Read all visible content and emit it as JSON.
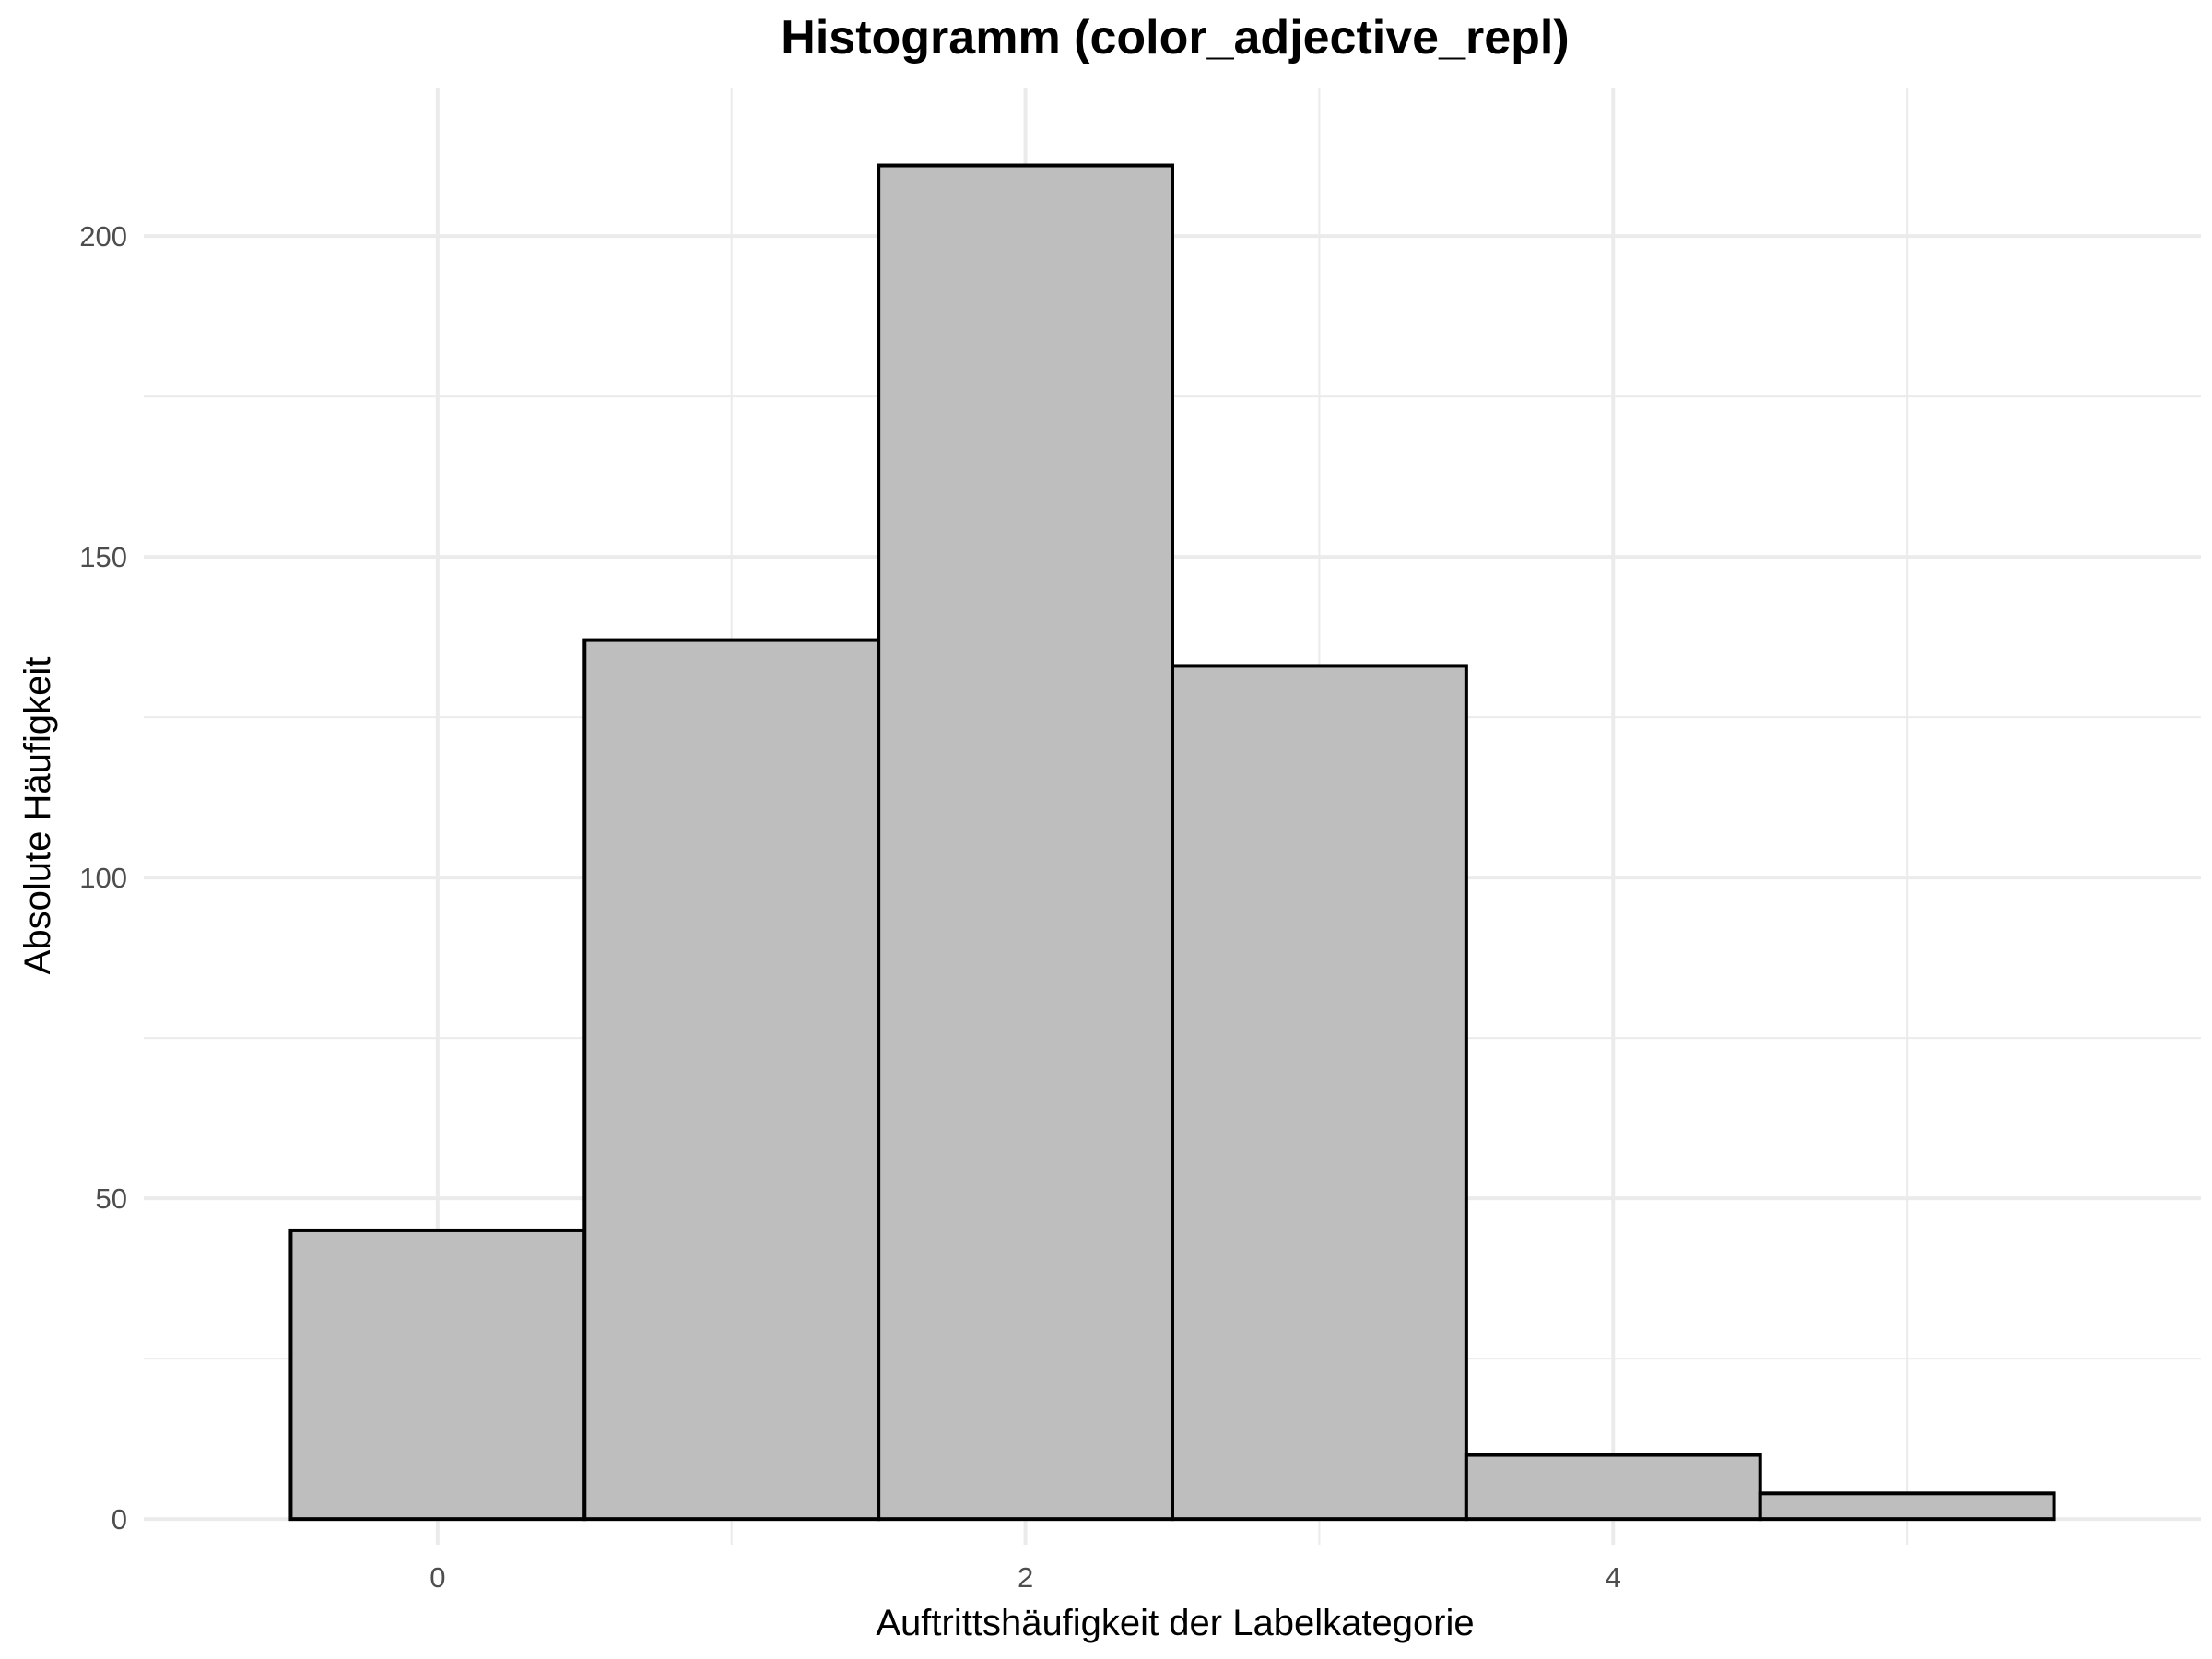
{
  "chart_data": {
    "type": "bar",
    "title": "Histogramm (color_adjective_repl)",
    "xlabel": "Auftrittshäufigkeit der Labelkategorie",
    "ylabel": "Absolute Häufigkeit",
    "bins": [
      {
        "x_start": -0.5,
        "x_end": 0.5,
        "value": 45
      },
      {
        "x_start": 0.5,
        "x_end": 1.5,
        "value": 137
      },
      {
        "x_start": 1.5,
        "x_end": 2.5,
        "value": 211
      },
      {
        "x_start": 2.5,
        "x_end": 3.5,
        "value": 133
      },
      {
        "x_start": 3.5,
        "x_end": 4.5,
        "value": 10
      },
      {
        "x_start": 4.5,
        "x_end": 5.5,
        "value": 4
      }
    ],
    "xlim": [
      -1.0,
      6.0
    ],
    "ylim": [
      -4.0,
      223.0
    ],
    "x_ticks": [
      0,
      2,
      4
    ],
    "x_ticks_labels": [
      "0",
      "2",
      "4"
    ],
    "x_minor_ticks": [
      1,
      3,
      5
    ],
    "y_ticks": [
      0,
      50,
      100,
      150,
      200
    ],
    "y_ticks_labels": [
      "0",
      "50",
      "100",
      "150",
      "200"
    ],
    "y_minor_ticks": [
      25,
      75,
      125,
      175
    ],
    "bar_fill": "#bebebe",
    "bar_stroke": "#000000",
    "grid": true,
    "legend": "none"
  }
}
